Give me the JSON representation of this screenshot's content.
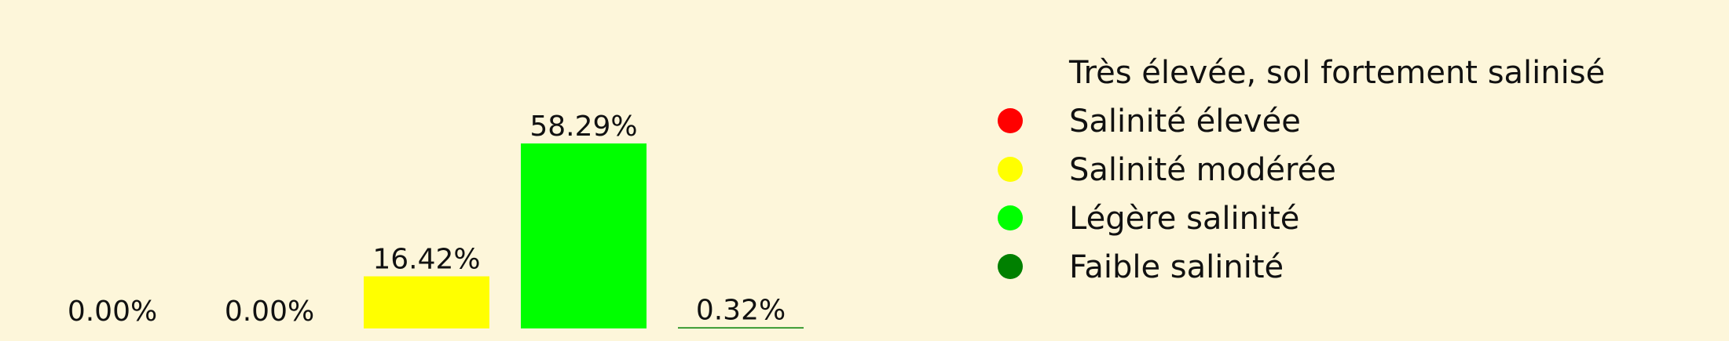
{
  "chart_data": {
    "type": "bar",
    "categories": [
      "Très élevée, sol fortement salinisé",
      "Salinité élevée",
      "Salinité modérée",
      "Légère salinité",
      "Faible salinité"
    ],
    "values": [
      0.0,
      0.0,
      16.42,
      58.29,
      0.32
    ],
    "value_labels": [
      "0.00%",
      "0.00%",
      "16.42%",
      "58.29%",
      "0.32%"
    ],
    "colors": [
      "#8b0000",
      "#ff0000",
      "#ffff00",
      "#00ff00",
      "#008000"
    ],
    "ylim": [
      0,
      58.29
    ],
    "grid": false,
    "legend": {
      "placement": "right",
      "entries": [
        {
          "label": "Très élevée, sol fortement salinisé",
          "color": "#fdf6da"
        },
        {
          "label": "Salinité élevée",
          "color": "#ff0000"
        },
        {
          "label": "Salinité modérée",
          "color": "#ffff00"
        },
        {
          "label": "Légère salinité",
          "color": "#00ff00"
        },
        {
          "label": "Faible salinité",
          "color": "#008000"
        }
      ]
    },
    "background": "#fdf6da"
  }
}
